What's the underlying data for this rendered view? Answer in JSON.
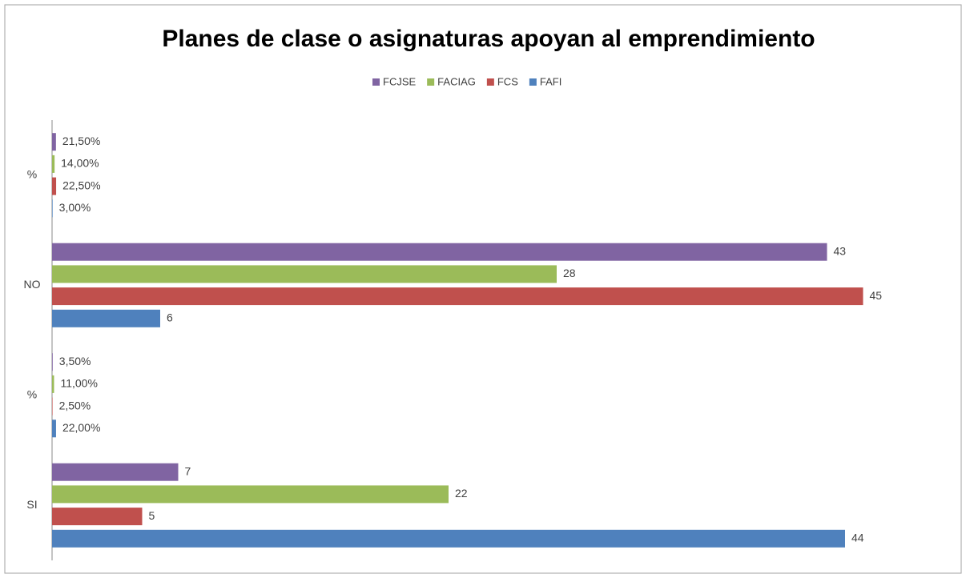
{
  "chart_data": {
    "type": "hbar",
    "title": "Planes de clase o asignaturas apoyan al emprendimiento",
    "categories": [
      "SI",
      "%",
      "NO",
      "%"
    ],
    "series": [
      {
        "name": "FAFI",
        "color": "#4f81bd",
        "values": [
          44,
          0.22,
          6,
          0.03
        ],
        "value_labels": [
          "44",
          "22,00%",
          "6",
          "3,00%"
        ]
      },
      {
        "name": "FCS",
        "color": "#c0504d",
        "values": [
          5,
          0.025,
          45,
          0.225
        ],
        "value_labels": [
          "5",
          "2,50%",
          "45",
          "22,50%"
        ]
      },
      {
        "name": "FACIAG",
        "color": "#9bbb59",
        "values": [
          22,
          0.11,
          28,
          0.14
        ],
        "value_labels": [
          "22",
          "11,00%",
          "28",
          "14,00%"
        ]
      },
      {
        "name": "FCJSE",
        "color": "#8064a2",
        "values": [
          7,
          0.035,
          43,
          0.215
        ],
        "value_labels": [
          "7",
          "3,50%",
          "43",
          "21,50%"
        ]
      }
    ],
    "xlim": [
      0,
      50
    ],
    "legend": "top"
  }
}
